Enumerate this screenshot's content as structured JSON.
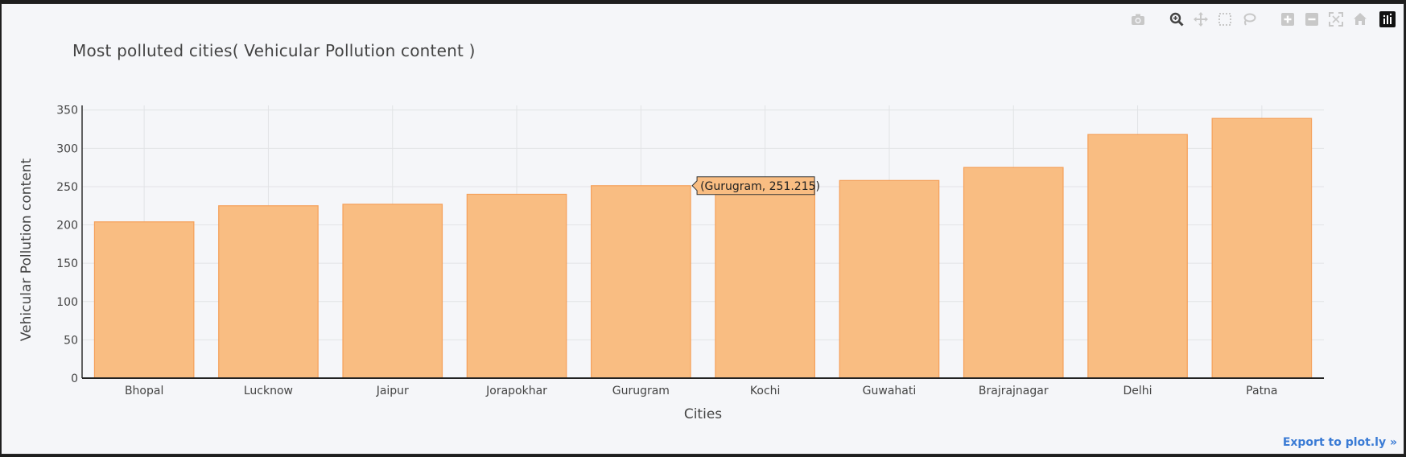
{
  "modebar": {
    "icons": [
      "camera-icon",
      "zoom-icon",
      "pan-icon",
      "box-select-icon",
      "lasso-icon",
      "zoom-in-icon",
      "zoom-out-icon",
      "autoscale-icon",
      "reset-axes-icon",
      "plotly-logo-icon"
    ]
  },
  "export_label": "Export to plot.ly »",
  "hover_label": "(Gurugram, 251.215)",
  "colors": {
    "bar_fill": "#f9bd82",
    "bar_stroke": "#f5a05a",
    "background": "#f5f6f9"
  },
  "chart_data": {
    "type": "bar",
    "title": "Most polluted cities( Vehicular Pollution content )",
    "xlabel": "Cities",
    "ylabel": "Vehicular Pollution content",
    "categories": [
      "Bhopal",
      "Lucknow",
      "Jaipur",
      "Jorapokhar",
      "Gurugram",
      "Kochi",
      "Guwahati",
      "Brajrajnagar",
      "Delhi",
      "Patna"
    ],
    "values": [
      204,
      225,
      227,
      240,
      251.215,
      253,
      258,
      275,
      318,
      339
    ],
    "ylim": [
      0,
      356
    ],
    "yticks": [
      0,
      50,
      100,
      150,
      200,
      250,
      300,
      350
    ],
    "grid": true,
    "hovered_index": 4
  }
}
